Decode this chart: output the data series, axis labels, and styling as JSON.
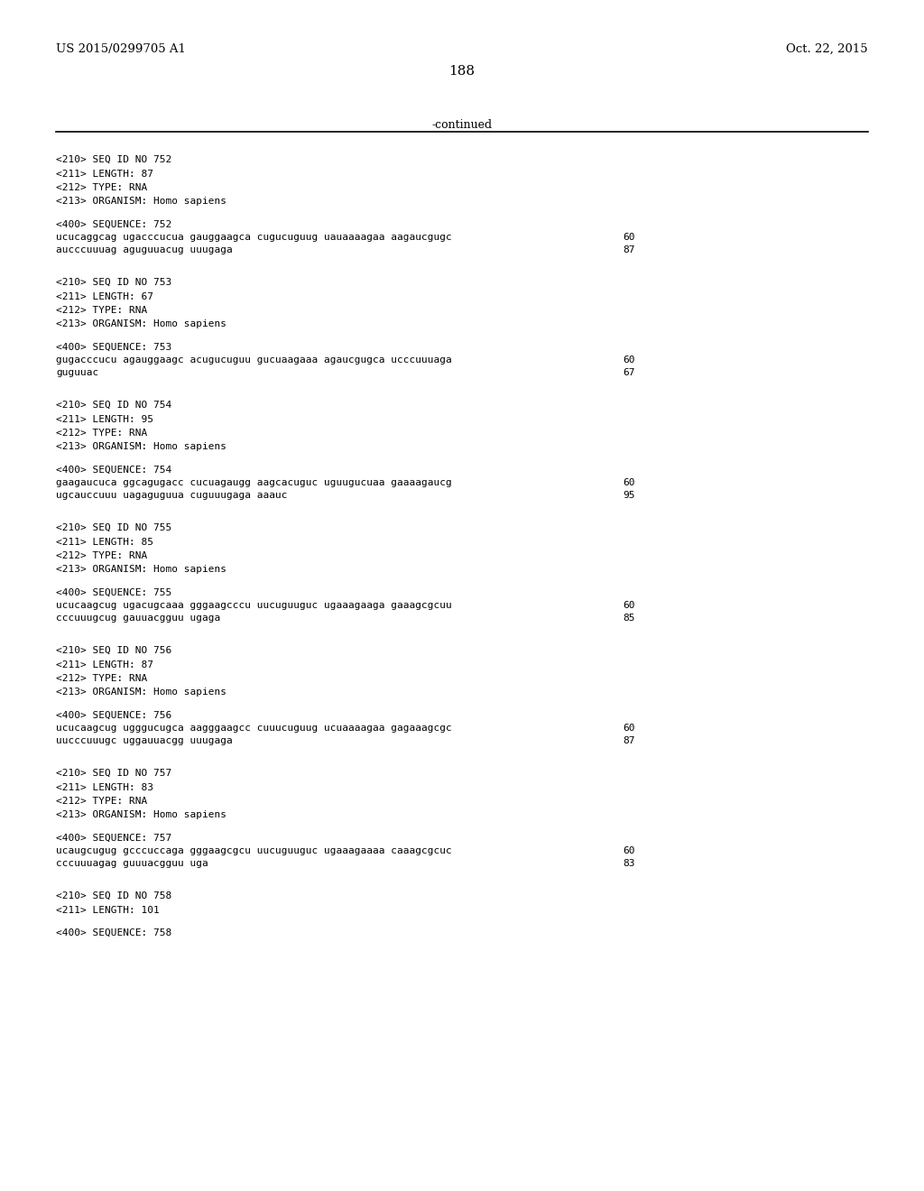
{
  "patent_left": "US 2015/0299705 A1",
  "patent_right": "Oct. 22, 2015",
  "page_number": "188",
  "continued_text": "-continued",
  "background_color": "#ffffff",
  "text_color": "#000000",
  "sequences": [
    {
      "seq_id": "752",
      "length": "87",
      "type": "RNA",
      "organism": "Homo sapiens",
      "seq_lines": [
        {
          "text": "ucucaggcag ugacccucua gauggaagca cugucuguug uauaaaagaa aagaucgugc",
          "num": "60"
        },
        {
          "text": "aucccuuuag aguguuacug uuugaga",
          "num": "87"
        }
      ]
    },
    {
      "seq_id": "753",
      "length": "67",
      "type": "RNA",
      "organism": "Homo sapiens",
      "seq_lines": [
        {
          "text": "gugacccucu agauggaagc acugucuguu gucuaagaaa agaucgugca ucccuuuaga",
          "num": "60"
        },
        {
          "text": "guguuac",
          "num": "67"
        }
      ]
    },
    {
      "seq_id": "754",
      "length": "95",
      "type": "RNA",
      "organism": "Homo sapiens",
      "seq_lines": [
        {
          "text": "gaagaucuca ggcagugacc cucuagaugg aagcacuguc uguugucuaa gaaaagaucg",
          "num": "60"
        },
        {
          "text": "ugcauccuuu uagaguguua cuguuugaga aaauc",
          "num": "95"
        }
      ]
    },
    {
      "seq_id": "755",
      "length": "85",
      "type": "RNA",
      "organism": "Homo sapiens",
      "seq_lines": [
        {
          "text": "ucucaagcug ugacugcaaa gggaagcccu uucuguuguc ugaaagaaga gaaagcgcuu",
          "num": "60"
        },
        {
          "text": "cccuuugcug gauuacgguu ugaga",
          "num": "85"
        }
      ]
    },
    {
      "seq_id": "756",
      "length": "87",
      "type": "RNA",
      "organism": "Homo sapiens",
      "seq_lines": [
        {
          "text": "ucucaagcug ugggucugca aagggaagcc cuuucuguug ucuaaaagaa gagaaagcgc",
          "num": "60"
        },
        {
          "text": "uucccuuugc uggauuacgg uuugaga",
          "num": "87"
        }
      ]
    },
    {
      "seq_id": "757",
      "length": "83",
      "type": "RNA",
      "organism": "Homo sapiens",
      "seq_lines": [
        {
          "text": "ucaugcugug gcccuccaga gggaagcgcu uucuguuguc ugaaagaaaa caaagcgcuc",
          "num": "60"
        },
        {
          "text": "cccuuuagag guuuacgguu uga",
          "num": "83"
        }
      ]
    },
    {
      "seq_id": "758",
      "length": "101",
      "type": "",
      "organism": "",
      "seq_lines": []
    }
  ]
}
